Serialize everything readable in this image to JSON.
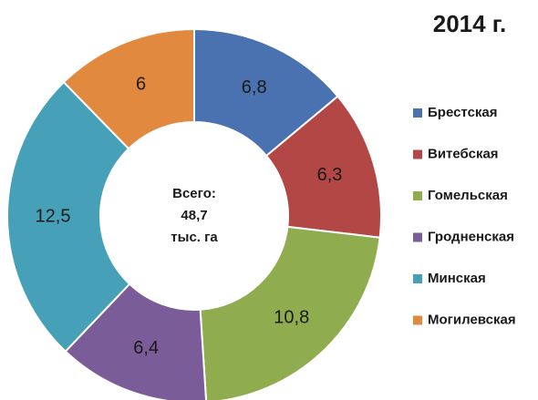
{
  "chart_data": {
    "type": "donut",
    "title": "2014 г.",
    "categories": [
      "Брестская",
      "Витебская",
      "Гомельская",
      "Гродненская",
      "Минская",
      "Могилевская"
    ],
    "values": [
      6.8,
      6.3,
      10.8,
      6.4,
      12.5,
      6
    ],
    "value_labels": [
      "6,8",
      "6,3",
      "10,8",
      "6,4",
      "12,5",
      "6"
    ],
    "colors": [
      "#4a72b0",
      "#b24745",
      "#8fad4f",
      "#7a5c99",
      "#45a0b8",
      "#e0893f"
    ],
    "annotations": [
      "Всего:",
      "48,7",
      "тыс. га"
    ],
    "legend": "right"
  }
}
